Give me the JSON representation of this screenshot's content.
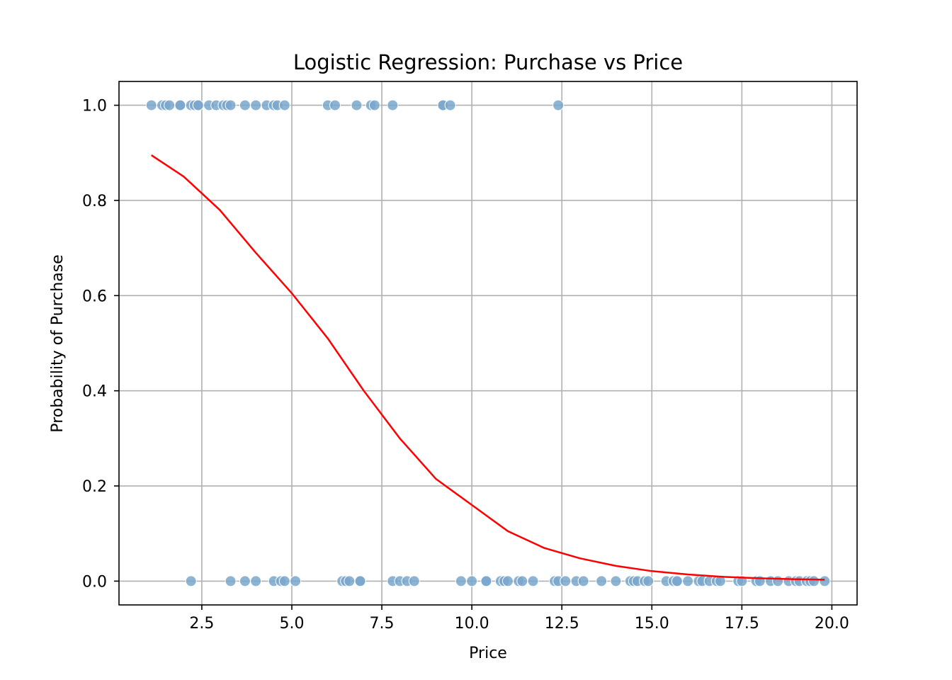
{
  "chart_data": {
    "type": "scatter",
    "title": "Logistic Regression: Purchase vs Price",
    "xlabel": "Price",
    "ylabel": "Probability of Purchase",
    "xlim": [
      0.2,
      20.7
    ],
    "ylim": [
      -0.05,
      1.05
    ],
    "x_ticks": [
      2.5,
      5.0,
      7.5,
      10.0,
      12.5,
      15.0,
      17.5,
      20.0
    ],
    "x_tick_labels": [
      "2.5",
      "5.0",
      "7.5",
      "10.0",
      "12.5",
      "15.0",
      "17.5",
      "20.0"
    ],
    "y_ticks": [
      0.0,
      0.2,
      0.4,
      0.6,
      0.8,
      1.0
    ],
    "y_tick_labels": [
      "0.0",
      "0.2",
      "0.4",
      "0.6",
      "0.8",
      "1.0"
    ],
    "grid": true,
    "colors": {
      "points": "#7aa7cc",
      "curve": "#ff0000",
      "grid": "#b0b0b0"
    },
    "scatter_points": {
      "purchased": [
        1.1,
        1.4,
        1.5,
        1.6,
        1.9,
        1.9,
        2.2,
        2.3,
        2.4,
        2.4,
        2.7,
        2.9,
        3.1,
        3.2,
        3.3,
        3.7,
        4.0,
        4.3,
        4.5,
        4.6,
        4.8,
        6.0,
        6.2,
        6.8,
        7.2,
        7.3,
        7.8,
        9.2,
        9.2,
        9.4,
        12.4
      ],
      "not_purchased": [
        2.2,
        3.3,
        3.7,
        4.0,
        4.5,
        4.7,
        4.8,
        5.1,
        6.4,
        6.5,
        6.6,
        6.9,
        6.9,
        7.8,
        8.0,
        8.2,
        8.4,
        9.7,
        10.0,
        10.4,
        10.4,
        10.8,
        10.9,
        11.0,
        11.3,
        11.4,
        11.7,
        12.3,
        12.4,
        12.6,
        12.9,
        13.1,
        13.6,
        14.0,
        14.4,
        14.5,
        14.6,
        14.8,
        14.9,
        15.4,
        15.6,
        15.7,
        15.7,
        16.0,
        16.3,
        16.4,
        16.6,
        16.8,
        16.9,
        17.4,
        17.5,
        17.9,
        18.0,
        18.3,
        18.5,
        18.8,
        19.0,
        19.1,
        19.3,
        19.4,
        19.5,
        19.8
      ]
    },
    "fit_curve": {
      "x": [
        1.1,
        2.0,
        3.0,
        4.0,
        5.0,
        6.0,
        7.0,
        8.0,
        9.0,
        10.0,
        11.0,
        12.0,
        13.0,
        14.0,
        15.0,
        16.0,
        17.0,
        18.0,
        19.0,
        19.8
      ],
      "y": [
        0.895,
        0.85,
        0.78,
        0.69,
        0.605,
        0.51,
        0.4,
        0.3,
        0.215,
        0.16,
        0.105,
        0.07,
        0.048,
        0.032,
        0.021,
        0.014,
        0.009,
        0.006,
        0.004,
        0.003
      ]
    }
  }
}
